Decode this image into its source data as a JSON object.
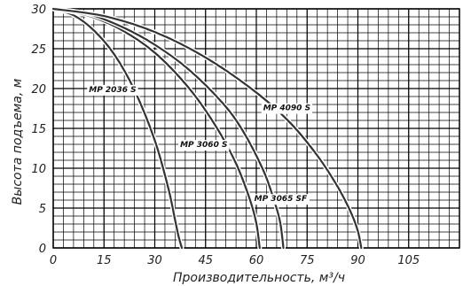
{
  "chart_data": {
    "type": "line",
    "xlabel": "Производительность, м³/ч",
    "ylabel": "Высота подъема, м",
    "xlim": [
      0,
      120
    ],
    "ylim": [
      0,
      30
    ],
    "xticks": [
      0,
      15,
      30,
      45,
      60,
      75,
      90,
      105
    ],
    "yticks": [
      0,
      5,
      10,
      15,
      20,
      25,
      30
    ],
    "grid": true,
    "minor_grid": {
      "x_step": 3,
      "y_step": 1
    },
    "series": [
      {
        "name": "MP 2036 S",
        "x": [
          0,
          6,
          12,
          18,
          24,
          30,
          34,
          36,
          37,
          38
        ],
        "y": [
          30,
          29.2,
          27.3,
          24.3,
          19.8,
          13.5,
          7.5,
          3.5,
          1.5,
          0
        ]
      },
      {
        "name": "MP 3060 S",
        "x": [
          0,
          10,
          20,
          30,
          40,
          48,
          54,
          58,
          60,
          61
        ],
        "y": [
          30,
          29.2,
          27.4,
          24.5,
          20.1,
          15.3,
          10.6,
          6.2,
          3.1,
          0
        ]
      },
      {
        "name": "MP 3065 SF",
        "x": [
          0,
          10,
          20,
          30,
          40,
          50,
          56,
          62,
          65,
          67,
          68
        ],
        "y": [
          30,
          29.4,
          27.8,
          25.5,
          22.4,
          18.2,
          14.7,
          9.8,
          6.3,
          3.3,
          0
        ]
      },
      {
        "name": "MP 4090 S",
        "x": [
          0,
          15,
          30,
          45,
          60,
          70,
          78,
          84,
          88,
          90,
          91
        ],
        "y": [
          30,
          29.1,
          27.1,
          23.9,
          19.5,
          15.7,
          11.6,
          7.7,
          4.4,
          2.1,
          0
        ]
      }
    ]
  }
}
